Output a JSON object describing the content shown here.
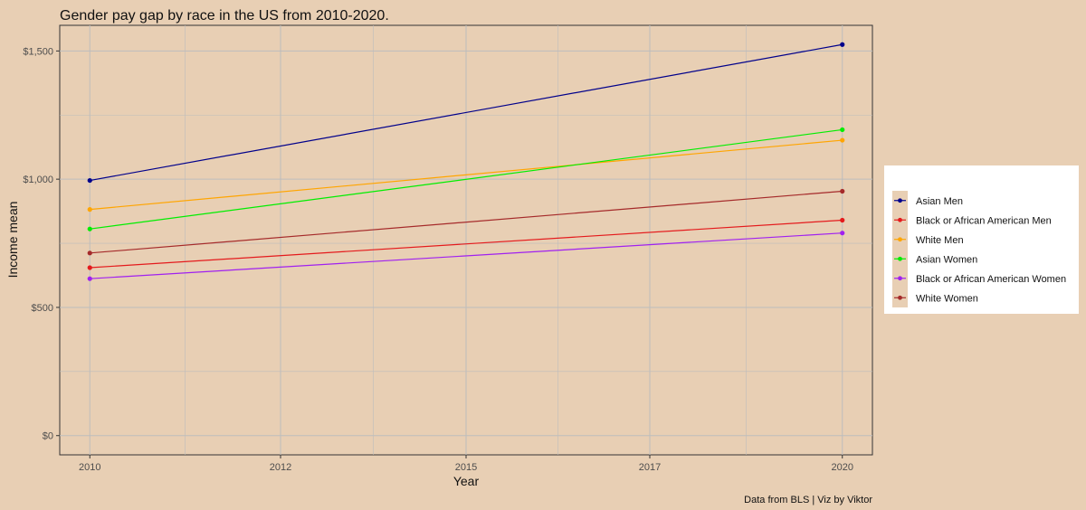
{
  "chart_data": {
    "type": "line",
    "title": "Gender pay gap by race in the US from 2010-2020.",
    "xlabel": "Year",
    "ylabel": "Income mean",
    "caption": "Data from BLS  | Viz by Viktor",
    "x": [
      2010,
      2020
    ],
    "x_ticks": [
      "2010",
      "2012",
      "2015",
      "2017",
      "2020"
    ],
    "y_ticks": [
      "$0",
      "$500",
      "$1,000",
      "$1,500"
    ],
    "y_tick_values": [
      0,
      500,
      1000,
      1500
    ],
    "ylim": [
      -75,
      1600
    ],
    "grid": true,
    "legend_position": "right",
    "series": [
      {
        "name": "Asian Men",
        "color": "#00008b",
        "values": [
          995,
          1525
        ]
      },
      {
        "name": "Black or African American Men",
        "color": "#e41a1c",
        "values": [
          655,
          840
        ]
      },
      {
        "name": "White Men",
        "color": "#ffa500",
        "values": [
          882,
          1152
        ]
      },
      {
        "name": "Asian Women",
        "color": "#00ee00",
        "values": [
          806,
          1193
        ]
      },
      {
        "name": "Black or African American Women",
        "color": "#a020f0",
        "values": [
          612,
          790
        ]
      },
      {
        "name": "White Women",
        "color": "#a52a2a",
        "values": [
          712,
          953
        ]
      }
    ]
  }
}
